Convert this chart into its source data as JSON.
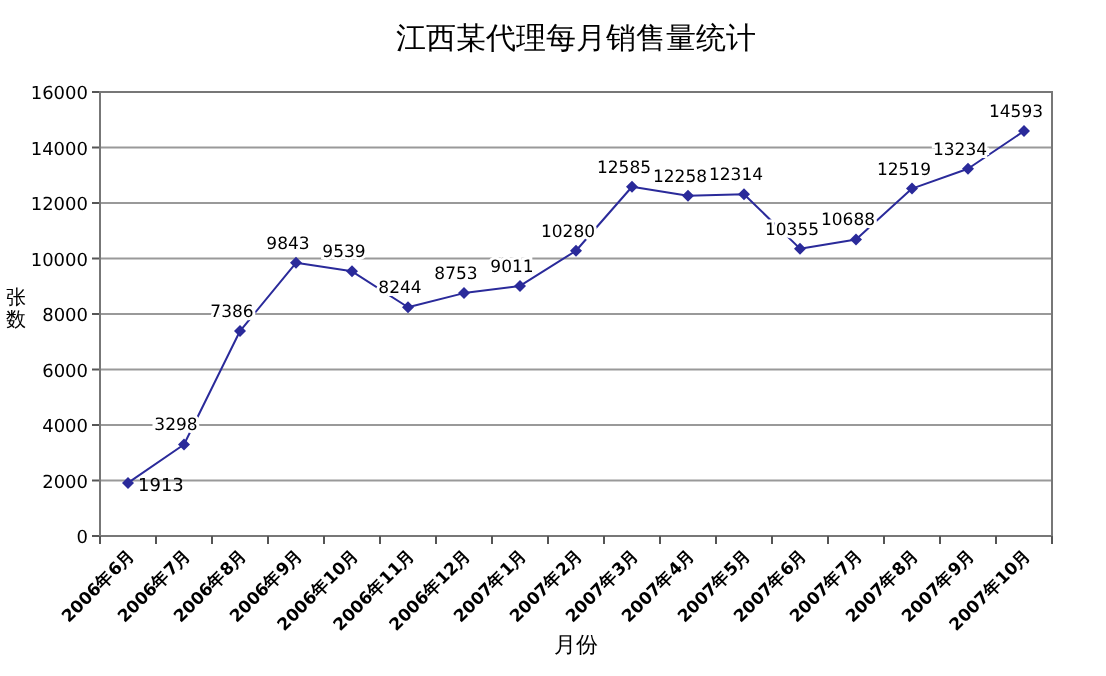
{
  "chart_data": {
    "type": "line",
    "title": "江西某代理每月销售量统计",
    "xlabel": "月份",
    "ylabel": "张数",
    "categories": [
      "2006年6月",
      "2006年7月",
      "2006年8月",
      "2006年9月",
      "2006年10月",
      "2006年11月",
      "2006年12月",
      "2007年1月",
      "2007年2月",
      "2007年3月",
      "2007年4月",
      "2007年5月",
      "2007年6月",
      "2007年7月",
      "2007年8月",
      "2007年9月",
      "2007年10月"
    ],
    "series": [
      {
        "color": "#2a2a9a",
        "values": [
          1913,
          3298,
          7386,
          9843,
          9539,
          8244,
          8753,
          9011,
          10280,
          12585,
          12258,
          12314,
          10355,
          10688,
          12519,
          13234,
          14593
        ]
      }
    ],
    "ylim": [
      0,
      16000
    ],
    "yticks": [
      0,
      2000,
      4000,
      6000,
      8000,
      10000,
      12000,
      14000,
      16000
    ],
    "grid": "y",
    "marker": "diamond",
    "data_labels": true
  }
}
